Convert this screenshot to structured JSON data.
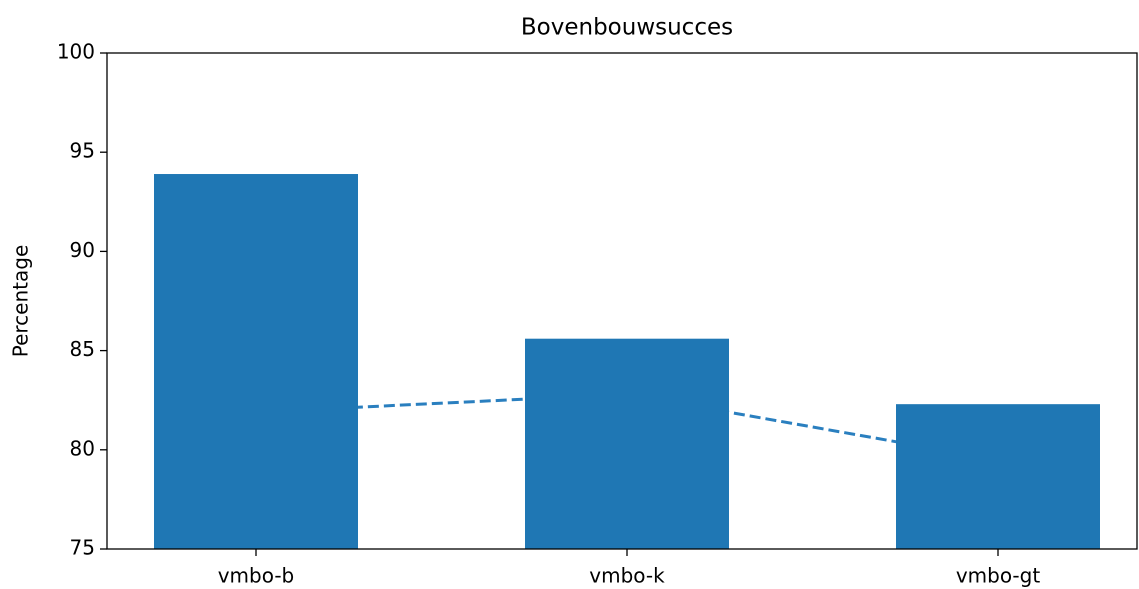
{
  "chart_data": {
    "type": "bar",
    "title": "Bovenbouwsucces",
    "ylabel": "Percentage",
    "categories": [
      "vmbo-b",
      "vmbo-k",
      "vmbo-gt"
    ],
    "series": [
      {
        "type": "bar",
        "color": "#1f77b4",
        "values": [
          93.9,
          85.6,
          82.3
        ]
      },
      {
        "type": "line",
        "color": "#2a7fbf",
        "linestyle": "dashed",
        "values": [
          81.9,
          82.8,
          79.5
        ]
      }
    ],
    "ylim": [
      75,
      100
    ],
    "yticks": [
      75,
      80,
      85,
      90,
      95,
      100
    ],
    "grid": false
  }
}
